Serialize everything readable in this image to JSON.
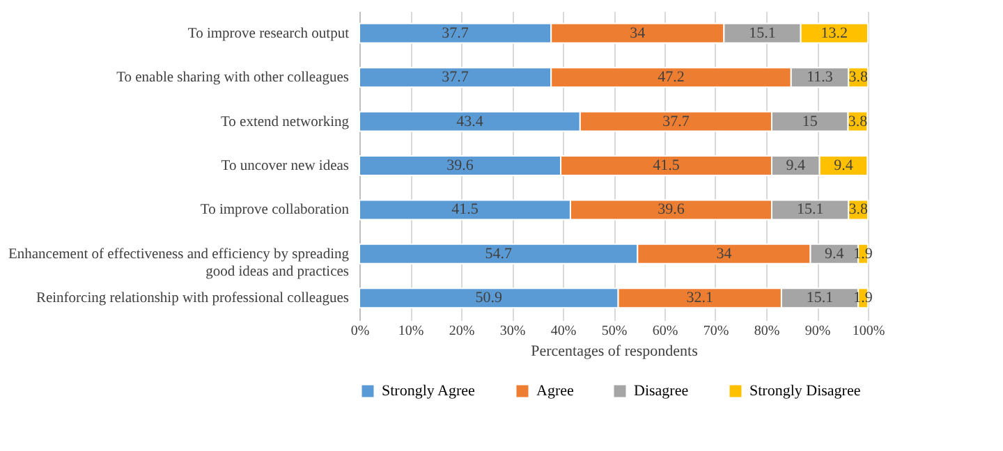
{
  "chart_data": {
    "type": "bar",
    "orientation": "horizontal",
    "stacked": true,
    "xlabel": "Percentages of respondents",
    "categories": [
      "To improve research output",
      "To enable sharing with other colleagues",
      "To extend networking",
      "To uncover new ideas",
      "To improve collaboration",
      "Enhancement of effectiveness and efficiency by spreading good ideas and practices",
      "Reinforcing relationship with professional colleagues"
    ],
    "series": [
      {
        "name": "Strongly Agree",
        "color": "#5b9bd5",
        "values": [
          37.7,
          37.7,
          43.4,
          39.6,
          41.5,
          54.7,
          50.9
        ]
      },
      {
        "name": "Agree",
        "color": "#ed7d31",
        "values": [
          34,
          47.2,
          37.7,
          41.5,
          39.6,
          34,
          32.1
        ]
      },
      {
        "name": "Disagree",
        "color": "#a5a5a5",
        "values": [
          15.1,
          11.3,
          15,
          9.4,
          15.1,
          9.4,
          15.1
        ]
      },
      {
        "name": "Strongly Disagree",
        "color": "#ffc000",
        "values": [
          13.2,
          3.8,
          3.8,
          9.4,
          3.8,
          1.9,
          1.9
        ]
      }
    ],
    "xlim": [
      0,
      100
    ],
    "xticks": [
      {
        "value": 0,
        "label": "0%"
      },
      {
        "value": 10,
        "label": "10%"
      },
      {
        "value": 20,
        "label": "20%"
      },
      {
        "value": 30,
        "label": "30%"
      },
      {
        "value": 40,
        "label": "40%"
      },
      {
        "value": 50,
        "label": "50%"
      },
      {
        "value": 60,
        "label": "60%"
      },
      {
        "value": 70,
        "label": "70%"
      },
      {
        "value": 80,
        "label": "80%"
      },
      {
        "value": 90,
        "label": "90%"
      },
      {
        "value": 100,
        "label": "100%"
      }
    ],
    "grid": "x",
    "legend": "bottom",
    "data_labels": true
  }
}
